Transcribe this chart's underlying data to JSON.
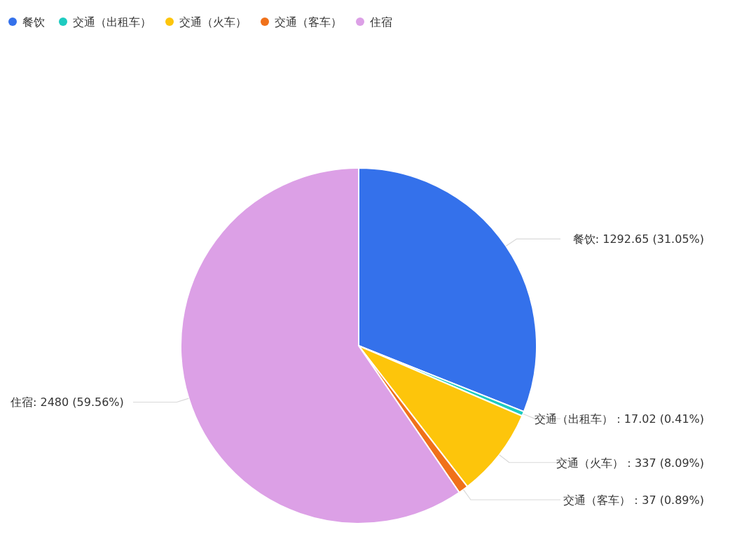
{
  "chart_data": {
    "type": "pie",
    "categories": [
      "餐饮",
      "交通（出租车）",
      "交通（火车）",
      "交通（客车）",
      "住宿"
    ],
    "values": [
      1292.65,
      17.02,
      337,
      37,
      2480
    ],
    "colors": [
      "#3471eb",
      "#1ecbc0",
      "#fdc50b",
      "#f0711a",
      "#dca0e6"
    ],
    "value_labels": [
      ": 1292.65 (31.05%)",
      "：17.02 (0.41%)",
      "：337 (8.09%)",
      "：37 (0.89%)",
      ": 2480 (59.56%)"
    ],
    "legend": "top left"
  }
}
